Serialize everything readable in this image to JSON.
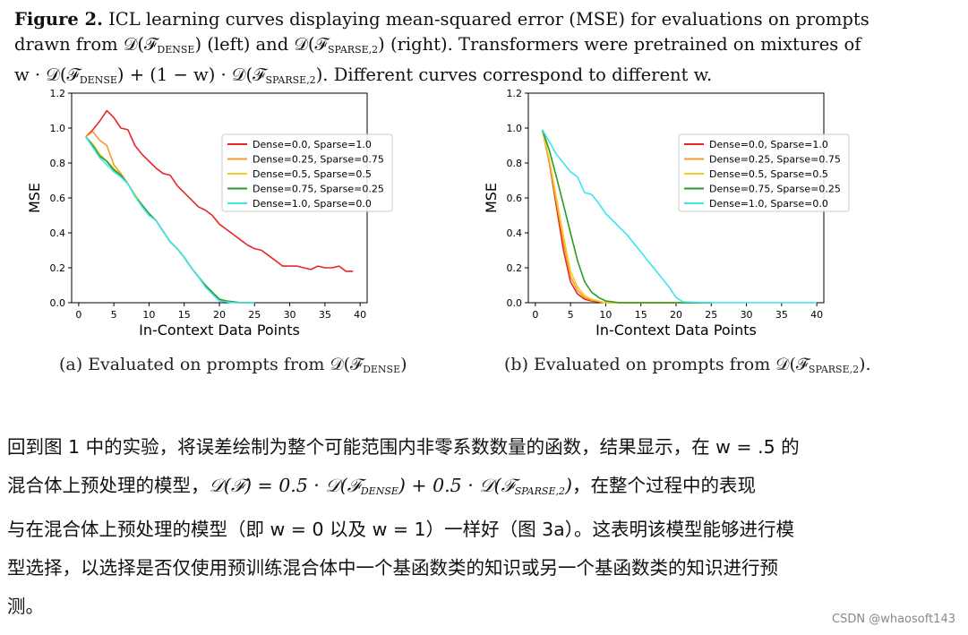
{
  "figure": {
    "label": "Figure 2.",
    "caption_line1": "ICL learning curves displaying mean-squared error (MSE) for evaluations on prompts",
    "caption_line2a": "drawn from 𝒟(ℱ",
    "caption_line2_sub1": "DENSE",
    "caption_line2b": ") (left) and 𝒟(ℱ",
    "caption_line2_sub2": "SPARSE,2",
    "caption_line2c": ") (right). Transformers were pretrained on mixtures of",
    "caption_line3a": "w · 𝒟(ℱ",
    "caption_line3_sub1": "DENSE",
    "caption_line3b": ") + (1 − w) · 𝒟(ℱ",
    "caption_line3_sub2": "SPARSE,2",
    "caption_line3c": "). Different curves correspond to different w."
  },
  "subcaptions": {
    "a_text": "(a) Evaluated on prompts from 𝒟(ℱ",
    "a_sub": "DENSE",
    "a_end": ")",
    "b_text": "(b) Evaluated on prompts from 𝒟(ℱ",
    "b_sub": "SPARSE,2",
    "b_end": ")."
  },
  "paragraph": {
    "line1": "回到图 1 中的实验，将误差绘制为整个可能范围内非零系数数量的函数，结果显示，在 w = .5 的",
    "line2a": "混合体上预处理的模型，",
    "formula": "𝒟(ℱ) = 0.5 · 𝒟(ℱ",
    "formula_sub1": "DENSE",
    "formula_mid": ") + 0.5 · 𝒟(ℱ",
    "formula_sub2": "SPARSE,2",
    "formula_end": ")",
    "line2b": "，在整个过程中的表现",
    "line3": "与在混合体上预处理的模型（即 w = 0 以及 w = 1）一样好（图 3a）。这表明该模型能够进行模",
    "line4": "型选择，以选择是否仅使用预训练混合体中一个基函数类的知识或另一个基函数类的知识进行预",
    "line5": "测。"
  },
  "watermark": "CSDN @whaosoft143",
  "chart_data": [
    {
      "type": "line",
      "xlabel": "In-Context Data Points",
      "ylabel": "MSE",
      "xlim": [
        -1,
        41
      ],
      "ylim": [
        0,
        1.2
      ],
      "xticks": [
        0,
        5,
        10,
        15,
        20,
        25,
        30,
        35,
        40
      ],
      "yticks": [
        0.0,
        0.2,
        0.4,
        0.6,
        0.8,
        1.0,
        1.2
      ],
      "legend": "upper-right",
      "series": [
        {
          "name": "Dense=0.0, Sparse=1.0",
          "color": "#e8262a",
          "x": [
            1,
            2,
            3,
            4,
            5,
            6,
            7,
            8,
            9,
            10,
            11,
            12,
            13,
            14,
            15,
            16,
            17,
            18,
            19,
            20,
            21,
            22,
            23,
            24,
            25,
            26,
            27,
            28,
            29,
            30,
            31,
            32,
            33,
            34,
            35,
            36,
            37,
            38,
            39
          ],
          "y": [
            0.95,
            0.99,
            1.04,
            1.1,
            1.06,
            1.0,
            0.99,
            0.9,
            0.85,
            0.81,
            0.77,
            0.74,
            0.73,
            0.67,
            0.63,
            0.59,
            0.55,
            0.53,
            0.5,
            0.45,
            0.42,
            0.39,
            0.36,
            0.33,
            0.31,
            0.3,
            0.27,
            0.24,
            0.21,
            0.21,
            0.21,
            0.2,
            0.19,
            0.21,
            0.2,
            0.2,
            0.21,
            0.18,
            0.18
          ]
        },
        {
          "name": "Dense=0.25, Sparse=0.75",
          "color": "#f59a2f",
          "x": [
            1,
            2,
            3,
            4,
            5,
            6,
            7,
            8,
            9,
            10,
            11,
            12,
            13,
            14,
            15,
            16,
            17,
            18,
            19,
            20,
            21,
            22,
            23,
            24,
            25
          ],
          "y": [
            0.95,
            0.98,
            0.93,
            0.9,
            0.79,
            0.74,
            0.68,
            0.62,
            0.56,
            0.51,
            0.47,
            0.41,
            0.35,
            0.31,
            0.26,
            0.2,
            0.15,
            0.1,
            0.06,
            0.02,
            0.01,
            0.005,
            0.0,
            0.0,
            0.0
          ]
        },
        {
          "name": "Dense=0.5, Sparse=0.5",
          "color": "#f2cf22",
          "x": [
            1,
            2,
            3,
            4,
            5,
            6,
            7,
            8,
            9,
            10,
            11,
            12,
            13,
            14,
            15,
            16,
            17,
            18,
            19,
            20,
            21,
            22,
            23,
            24,
            25
          ],
          "y": [
            0.95,
            0.91,
            0.85,
            0.81,
            0.77,
            0.73,
            0.68,
            0.62,
            0.56,
            0.51,
            0.47,
            0.41,
            0.35,
            0.31,
            0.26,
            0.2,
            0.15,
            0.1,
            0.06,
            0.02,
            0.01,
            0.005,
            0.0,
            0.0,
            0.0
          ]
        },
        {
          "name": "Dense=0.75, Sparse=0.25",
          "color": "#2a9a2a",
          "x": [
            1,
            2,
            3,
            4,
            5,
            6,
            7,
            8,
            9,
            10,
            11,
            12,
            13,
            14,
            15,
            16,
            17,
            18,
            19,
            20,
            21,
            22,
            23,
            24,
            25
          ],
          "y": [
            0.95,
            0.9,
            0.84,
            0.81,
            0.76,
            0.73,
            0.68,
            0.61,
            0.56,
            0.51,
            0.47,
            0.41,
            0.35,
            0.31,
            0.26,
            0.2,
            0.15,
            0.1,
            0.06,
            0.02,
            0.01,
            0.005,
            0.0,
            0.0,
            0.0
          ]
        },
        {
          "name": "Dense=1.0, Sparse=0.0",
          "color": "#38e6f0",
          "x": [
            1,
            2,
            3,
            4,
            5,
            6,
            7,
            8,
            9,
            10,
            11,
            12,
            13,
            14,
            15,
            16,
            17,
            18,
            19,
            20,
            21,
            22,
            23,
            24,
            25
          ],
          "y": [
            0.95,
            0.89,
            0.83,
            0.79,
            0.75,
            0.72,
            0.68,
            0.61,
            0.55,
            0.5,
            0.47,
            0.41,
            0.35,
            0.31,
            0.26,
            0.2,
            0.15,
            0.09,
            0.05,
            0.01,
            0.005,
            0.0,
            0.0,
            0.0,
            0.0
          ]
        }
      ]
    },
    {
      "type": "line",
      "xlabel": "In-Context Data Points",
      "ylabel": "MSE",
      "xlim": [
        -1,
        41
      ],
      "ylim": [
        0,
        1.2
      ],
      "xticks": [
        0,
        5,
        10,
        15,
        20,
        25,
        30,
        35,
        40
      ],
      "yticks": [
        0.0,
        0.2,
        0.4,
        0.6,
        0.8,
        1.0,
        1.2
      ],
      "legend": "upper-right",
      "series": [
        {
          "name": "Dense=0.0, Sparse=1.0",
          "color": "#e8262a",
          "x": [
            1,
            2,
            3,
            4,
            5,
            6,
            7,
            8,
            9,
            10,
            11,
            12,
            15,
            20,
            25
          ],
          "y": [
            0.99,
            0.8,
            0.55,
            0.3,
            0.12,
            0.05,
            0.02,
            0.01,
            0.005,
            0.0,
            0.0,
            0.0,
            0.0,
            0.0,
            0.0
          ]
        },
        {
          "name": "Dense=0.25, Sparse=0.75",
          "color": "#f59a2f",
          "x": [
            1,
            2,
            3,
            4,
            5,
            6,
            7,
            8,
            9,
            10,
            11,
            12,
            15,
            20,
            25
          ],
          "y": [
            0.99,
            0.81,
            0.58,
            0.35,
            0.15,
            0.07,
            0.03,
            0.015,
            0.008,
            0.0,
            0.0,
            0.0,
            0.0,
            0.0,
            0.0
          ]
        },
        {
          "name": "Dense=0.5, Sparse=0.5",
          "color": "#f2cf22",
          "x": [
            1,
            2,
            3,
            4,
            5,
            6,
            7,
            8,
            9,
            10,
            11,
            12,
            15,
            20,
            25
          ],
          "y": [
            0.99,
            0.82,
            0.6,
            0.38,
            0.18,
            0.09,
            0.04,
            0.02,
            0.01,
            0.0,
            0.0,
            0.0,
            0.0,
            0.0,
            0.0
          ]
        },
        {
          "name": "Dense=0.75, Sparse=0.25",
          "color": "#2a9a2a",
          "x": [
            1,
            2,
            3,
            4,
            5,
            6,
            7,
            8,
            9,
            10,
            11,
            12,
            15,
            20,
            25
          ],
          "y": [
            0.99,
            0.87,
            0.72,
            0.56,
            0.4,
            0.24,
            0.12,
            0.06,
            0.03,
            0.01,
            0.005,
            0.0,
            0.0,
            0.0,
            0.0
          ]
        },
        {
          "name": "Dense=1.0, Sparse=0.0",
          "color": "#38e6f0",
          "x": [
            1,
            2,
            3,
            4,
            5,
            6,
            7,
            8,
            9,
            10,
            11,
            12,
            13,
            14,
            15,
            16,
            17,
            18,
            19,
            20,
            21,
            25,
            30,
            35,
            40
          ],
          "y": [
            0.99,
            0.92,
            0.85,
            0.8,
            0.75,
            0.72,
            0.63,
            0.62,
            0.57,
            0.51,
            0.47,
            0.43,
            0.39,
            0.34,
            0.29,
            0.24,
            0.19,
            0.14,
            0.09,
            0.03,
            0.005,
            0.0,
            0.0,
            0.0,
            0.0
          ]
        }
      ]
    }
  ]
}
